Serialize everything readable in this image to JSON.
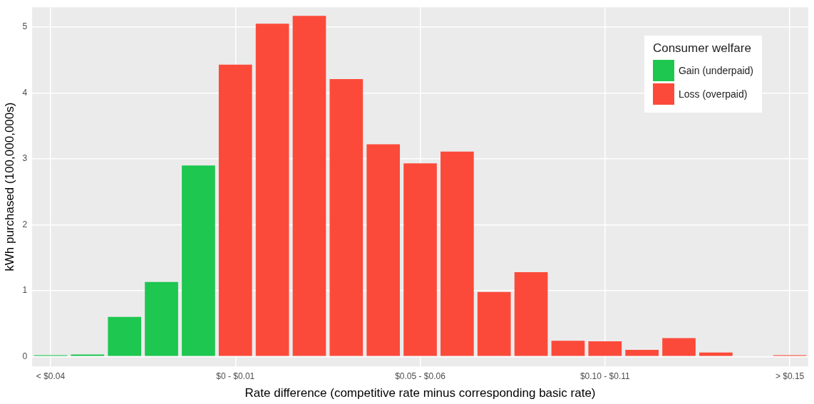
{
  "chart_data": {
    "type": "bar",
    "xlabel": "Rate difference (competitive rate minus corresponding basic rate)",
    "ylabel": "kWh purchased (100,000,000s)",
    "legend_title": "Consumer welfare",
    "categories": [
      "< $0.04",
      null,
      null,
      null,
      null,
      "$0 - $0.01",
      null,
      null,
      null,
      null,
      "$0.05 - $0.06",
      null,
      null,
      null,
      null,
      "$0.10 - $0.11",
      null,
      null,
      null,
      null,
      "> $0.15"
    ],
    "stacked": true,
    "series": [
      {
        "name": "Gain (underpaid)",
        "color": "#1dc750",
        "values": [
          0.02,
          0.03,
          0.6,
          1.13,
          2.9,
          null,
          null,
          null,
          null,
          null,
          null,
          null,
          null,
          null,
          null,
          null,
          null,
          null,
          null,
          null,
          null
        ]
      },
      {
        "name": "Loss (overpaid)",
        "color": "#fc4a3a",
        "values": [
          null,
          null,
          null,
          null,
          null,
          4.43,
          5.05,
          5.17,
          4.21,
          3.22,
          2.93,
          3.11,
          0.98,
          1.28,
          0.24,
          0.23,
          0.1,
          0.28,
          0.06,
          null,
          0.02
        ]
      }
    ],
    "ylim": [
      -0.15,
      5.3
    ],
    "yticks": [
      0,
      1,
      2,
      3,
      4,
      5
    ],
    "grid": true,
    "legend": "top right"
  }
}
